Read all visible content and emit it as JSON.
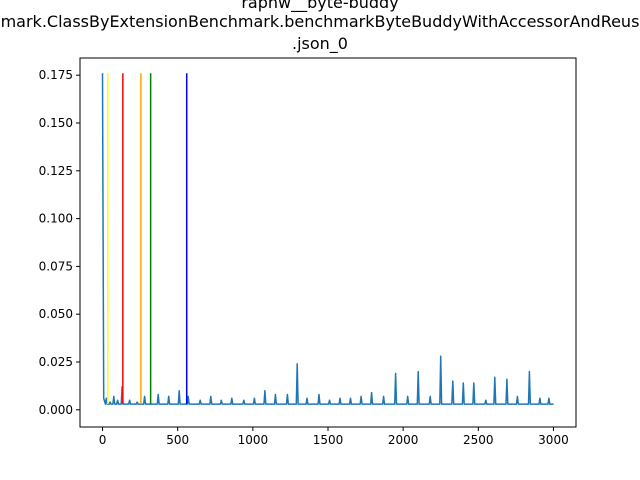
{
  "chart_data": {
    "type": "line",
    "title_lines": [
      "raphw__byte-buddy",
      "mark.ClassByExtensionBenchmark.benchmarkByteBuddyWithAccessorAndReus",
      ".json_0"
    ],
    "xlabel": "",
    "ylabel": "",
    "xlim": [
      -150,
      3150
    ],
    "ylim": [
      -0.009,
      0.184
    ],
    "x_ticks": [
      0,
      500,
      1000,
      1500,
      2000,
      2500,
      3000
    ],
    "y_ticks": [
      0.0,
      0.025,
      0.05,
      0.075,
      0.1,
      0.125,
      0.15,
      0.175
    ],
    "y_tick_labels": [
      "0.000",
      "0.025",
      "0.050",
      "0.075",
      "0.100",
      "0.125",
      "0.150",
      "0.175"
    ],
    "grid": false,
    "series_color": "#1f77b4",
    "baseline": 0.003,
    "spikes": [
      [
        0,
        0.176
      ],
      [
        25,
        0.006
      ],
      [
        50,
        0.004
      ],
      [
        75,
        0.007
      ],
      [
        100,
        0.005
      ],
      [
        130,
        0.012
      ],
      [
        180,
        0.005
      ],
      [
        230,
        0.004
      ],
      [
        280,
        0.007
      ],
      [
        370,
        0.008
      ],
      [
        440,
        0.007
      ],
      [
        510,
        0.01
      ],
      [
        570,
        0.007
      ],
      [
        650,
        0.005
      ],
      [
        720,
        0.007
      ],
      [
        790,
        0.005
      ],
      [
        860,
        0.006
      ],
      [
        940,
        0.005
      ],
      [
        1010,
        0.006
      ],
      [
        1080,
        0.01
      ],
      [
        1150,
        0.008
      ],
      [
        1230,
        0.008
      ],
      [
        1295,
        0.024
      ],
      [
        1360,
        0.006
      ],
      [
        1440,
        0.008
      ],
      [
        1510,
        0.005
      ],
      [
        1580,
        0.006
      ],
      [
        1650,
        0.006
      ],
      [
        1720,
        0.007
      ],
      [
        1790,
        0.009
      ],
      [
        1870,
        0.007
      ],
      [
        1950,
        0.019
      ],
      [
        2030,
        0.007
      ],
      [
        2100,
        0.02
      ],
      [
        2180,
        0.007
      ],
      [
        2250,
        0.028
      ],
      [
        2330,
        0.015
      ],
      [
        2400,
        0.014
      ],
      [
        2470,
        0.014
      ],
      [
        2550,
        0.005
      ],
      [
        2610,
        0.017
      ],
      [
        2690,
        0.016
      ],
      [
        2760,
        0.007
      ],
      [
        2840,
        0.02
      ],
      [
        2910,
        0.006
      ],
      [
        2970,
        0.006
      ]
    ],
    "vertical_lines": [
      {
        "x": 35,
        "color": "#ffff00"
      },
      {
        "x": 135,
        "color": "#ff0000"
      },
      {
        "x": 255,
        "color": "#ffa500"
      },
      {
        "x": 320,
        "color": "#008000"
      },
      {
        "x": 560,
        "color": "#0000ff"
      }
    ],
    "vertical_line_range": [
      0.003,
      0.176
    ]
  }
}
